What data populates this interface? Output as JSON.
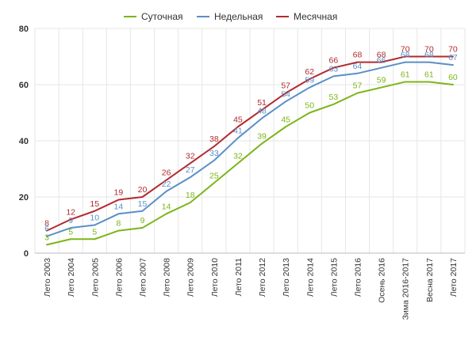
{
  "chart_data": {
    "type": "line",
    "title": "",
    "xlabel": "",
    "ylabel": "",
    "ylim": [
      0,
      80
    ],
    "yticks": [
      0,
      20,
      40,
      60,
      80
    ],
    "grid": true,
    "legend_position": "top-center",
    "categories": [
      "Лето 2003",
      "Лето 2004",
      "Лето 2005",
      "Лето 2006",
      "Лето 2007",
      "Лето 2008",
      "Лето 2009",
      "Лето 2010",
      "Лето 2011",
      "Лето 2012",
      "Лето 2013",
      "Лето 2014",
      "Лето 2015",
      "Лето 2016",
      "Осень 2016",
      "Зима 2016-2017",
      "Весна 2017",
      "Лето 2017"
    ],
    "series": [
      {
        "name": "Суточная",
        "color": "#7cb518",
        "values": [
          3,
          5,
          5,
          8,
          9,
          14,
          18,
          25,
          32,
          39,
          45,
          50,
          53,
          57,
          59,
          61,
          61,
          60
        ]
      },
      {
        "name": "Недельная",
        "color": "#5b8fc7",
        "values": [
          6,
          9,
          10,
          14,
          15,
          22,
          27,
          33,
          41,
          48,
          54,
          59,
          63,
          64,
          66,
          68,
          68,
          67
        ]
      },
      {
        "name": "Месячная",
        "color": "#b22a2e",
        "values": [
          8,
          12,
          15,
          19,
          20,
          26,
          32,
          38,
          45,
          51,
          57,
          62,
          66,
          68,
          68,
          70,
          70,
          70
        ]
      }
    ]
  }
}
